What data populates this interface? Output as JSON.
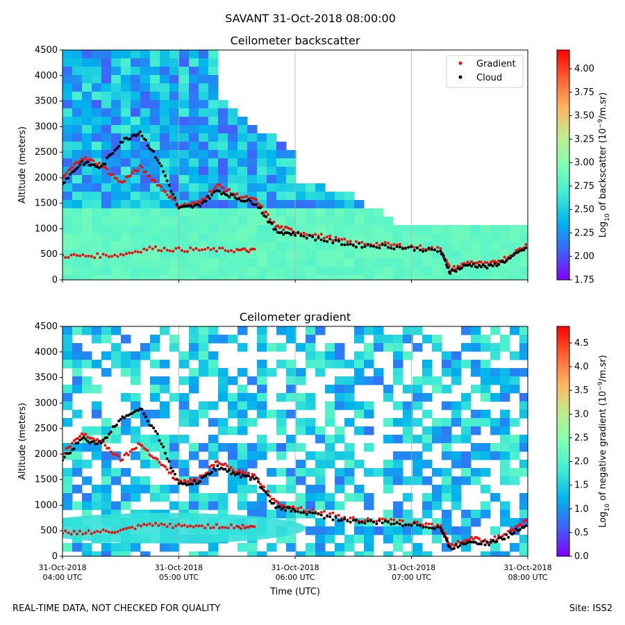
{
  "figure": {
    "suptitle": "SAVANT 31-Oct-2018 08:00:00",
    "footer_left": "REAL-TIME DATA, NOT CHECKED FOR QUALITY",
    "footer_right": "Site: ISS2"
  },
  "colors": {
    "gradient_marker": "#ee1111",
    "cloud_marker": "#000000",
    "colormap": [
      "#8000ff",
      "#4062fa",
      "#00b4eb",
      "#40ecd4",
      "#80ffb4",
      "#c0eb8d",
      "#ffb462",
      "#ff6232",
      "#ff0000"
    ]
  },
  "chart_data": [
    {
      "type": "heatmap",
      "title": "Ceilometer backscatter",
      "ylabel": "Altitude (meters)",
      "xlabel": "",
      "x_ticks": [
        "04:00",
        "05:00",
        "06:00",
        "07:00",
        "08:00"
      ],
      "xlim": [
        "04:00",
        "08:00"
      ],
      "ylim": [
        0,
        4500
      ],
      "y_ticks": [
        0,
        500,
        1000,
        1500,
        2000,
        2500,
        3000,
        3500,
        4000,
        4500
      ],
      "grid": "vertical",
      "legend": {
        "placement": "top-right",
        "entries": [
          "Gradient",
          "Cloud"
        ]
      },
      "colorbar": {
        "label": "Log10 of backscatter (10^-9/m.sr)",
        "label_main": "Log",
        "label_sub": "10",
        "label_rest": " of backscatter (10",
        "label_sup": "−9",
        "label_end": "/m.sr)",
        "range": [
          1.75,
          4.2
        ],
        "ticks": [
          "1.75",
          "2.00",
          "2.25",
          "2.50",
          "2.75",
          "3.00",
          "3.25",
          "3.50",
          "3.75",
          "4.00"
        ]
      },
      "series": [
        {
          "name": "Gradient",
          "type": "scatter",
          "x": [
            "04:00",
            "04:15",
            "04:30",
            "04:45",
            "05:00",
            "05:15",
            "05:30",
            "05:40"
          ],
          "y": [
            470,
            470,
            490,
            620,
            590,
            590,
            580,
            570
          ]
        },
        {
          "name": "Gradient",
          "type": "scatter",
          "x": [
            "04:00",
            "04:10",
            "04:20",
            "04:30",
            "04:40",
            "04:50",
            "05:00",
            "05:10",
            "05:20",
            "05:30",
            "05:40",
            "05:50",
            "06:00",
            "06:15",
            "06:30",
            "06:45",
            "07:00",
            "07:15",
            "07:20",
            "07:30",
            "07:40",
            "07:50",
            "08:00"
          ],
          "y": [
            2000,
            2400,
            2250,
            1900,
            2200,
            1850,
            1450,
            1500,
            1850,
            1650,
            1550,
            1050,
            950,
            850,
            720,
            700,
            650,
            600,
            200,
            350,
            300,
            450,
            700
          ]
        },
        {
          "name": "Cloud",
          "type": "scatter",
          "x": [
            "04:00",
            "04:10",
            "04:20",
            "04:30",
            "04:40",
            "04:50",
            "05:00",
            "05:10",
            "05:20",
            "05:30",
            "05:40",
            "05:50",
            "06:00",
            "06:15",
            "06:30",
            "06:45",
            "07:00",
            "07:15",
            "07:20",
            "07:30",
            "07:40",
            "07:50",
            "08:00"
          ],
          "y": [
            1900,
            2300,
            2200,
            2700,
            2900,
            2300,
            1400,
            1450,
            1750,
            1600,
            1500,
            950,
            900,
            780,
            680,
            660,
            620,
            560,
            150,
            300,
            250,
            400,
            650
          ]
        }
      ]
    },
    {
      "type": "heatmap",
      "title": "Ceilometer gradient",
      "ylabel": "Altitude (meters)",
      "xlabel": "Time (UTC)",
      "x_ticks": [
        "31-Oct-2018\n04:00 UTC",
        "31-Oct-2018\n05:00 UTC",
        "31-Oct-2018\n06:00 UTC",
        "31-Oct-2018\n07:00 UTC",
        "31-Oct-2018\n08:00 UTC"
      ],
      "x_tick_date": "31-Oct-2018",
      "x_tick_times": [
        "04:00 UTC",
        "05:00 UTC",
        "06:00 UTC",
        "07:00 UTC",
        "08:00 UTC"
      ],
      "xlim": [
        "04:00",
        "08:00"
      ],
      "ylim": [
        0,
        4500
      ],
      "y_ticks": [
        0,
        500,
        1000,
        1500,
        2000,
        2500,
        3000,
        3500,
        4000,
        4500
      ],
      "grid": "vertical",
      "colorbar": {
        "label": "Log10 of negative gradient (10^-9/m.sr)",
        "label_main": "Log",
        "label_sub": "10",
        "label_rest": " of negative gradient (10",
        "label_sup": "−9",
        "label_end": "/m.sr)",
        "range": [
          0.0,
          4.85
        ],
        "ticks": [
          "0.0",
          "0.5",
          "1.0",
          "1.5",
          "2.0",
          "2.5",
          "3.0",
          "3.5",
          "4.0",
          "4.5"
        ]
      }
    }
  ]
}
